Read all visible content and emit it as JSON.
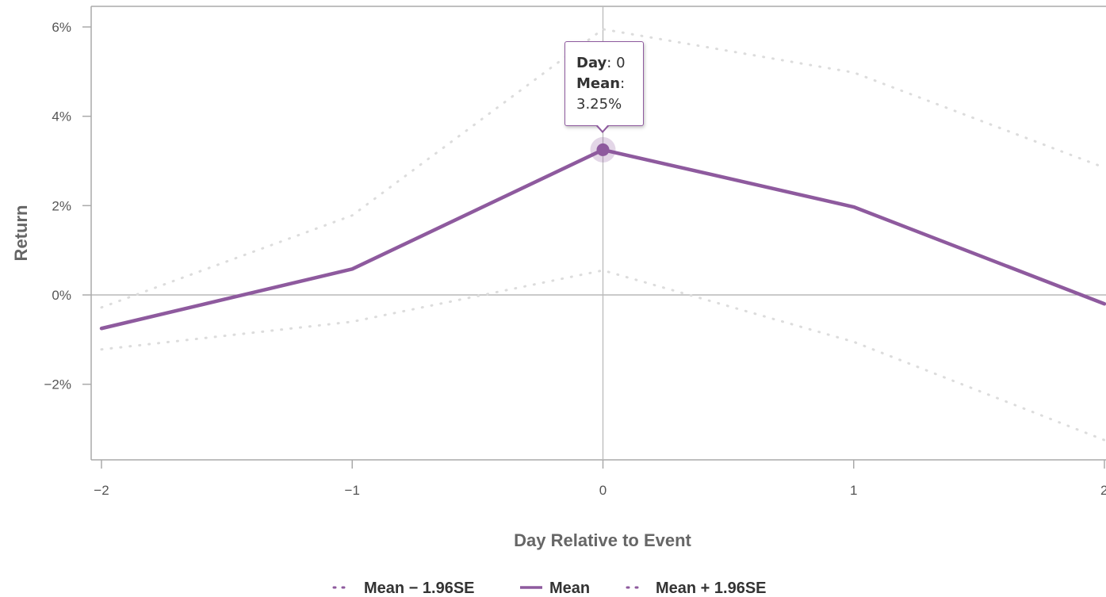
{
  "chart_data": {
    "type": "line",
    "xlabel": "Day Relative to Event",
    "ylabel": "Return",
    "x": [
      -2,
      -1,
      0,
      1,
      2
    ],
    "x_tick_labels": [
      "−2",
      "−1",
      "0",
      "1",
      "2"
    ],
    "y_ticks": [
      6,
      4,
      2,
      0,
      -2
    ],
    "y_tick_labels": [
      "6%",
      "4%",
      "2%",
      "0%",
      "−2%"
    ],
    "y_unit": "%",
    "ylim": [
      -3.7,
      6.6
    ],
    "xlim": [
      -2,
      2
    ],
    "grid": "zero-line only",
    "legend_position": "bottom-center",
    "series": [
      {
        "name": "Mean − 1.96SE",
        "style": "dotted",
        "color": "#dcdcdc",
        "values": [
          -1.22,
          -0.6,
          0.55,
          -1.05,
          -3.25
        ]
      },
      {
        "name": "Mean",
        "style": "solid",
        "color": "#8e5a9e",
        "values": [
          -0.75,
          0.58,
          3.25,
          1.97,
          -0.2
        ]
      },
      {
        "name": "Mean + 1.96SE",
        "style": "dotted",
        "color": "#dcdcdc",
        "values": [
          -0.28,
          1.78,
          5.95,
          4.98,
          2.85
        ]
      }
    ],
    "tooltip": {
      "day_key": "Day",
      "day_value": "0",
      "mean_key": "Mean",
      "mean_value": "3.25%"
    },
    "highlight_x": 0
  },
  "legend": {
    "items": [
      {
        "label": "Mean − 1.96SE",
        "style": "dotted",
        "color": "#8e5a9e"
      },
      {
        "label": "Mean",
        "style": "solid",
        "color": "#8e5a9e"
      },
      {
        "label": "Mean + 1.96SE",
        "style": "dotted",
        "color": "#8e5a9e"
      }
    ]
  },
  "colors": {
    "accent": "#8e5a9e",
    "band": "#dcdcdc",
    "axis": "#aaaaaa"
  }
}
